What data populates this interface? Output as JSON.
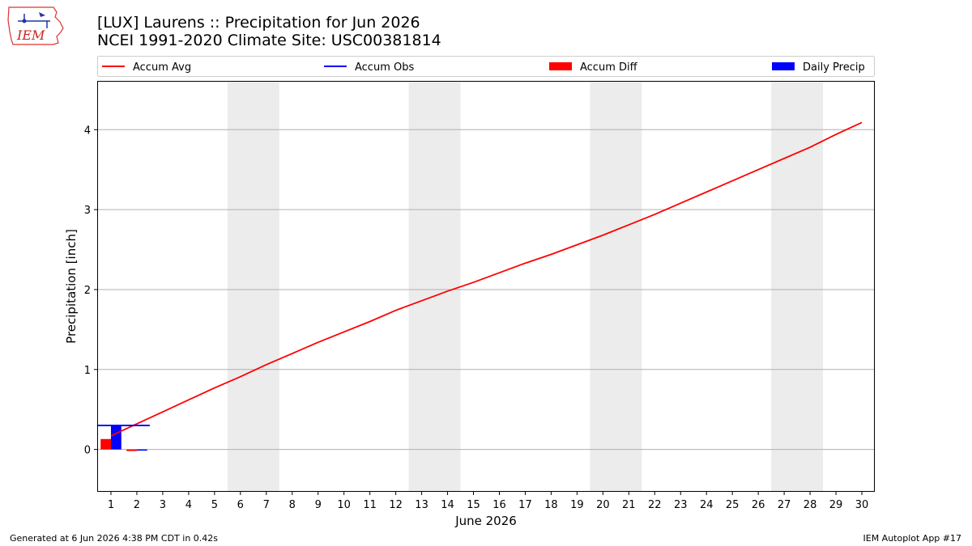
{
  "header": {
    "title_line1": "[LUX] Laurens :: Precipitation for Jun 2026",
    "title_line2": "NCEI 1991-2020 Climate Site: USC00381814"
  },
  "logo": {
    "text": "IEM",
    "icon": "iem-iowa-logo"
  },
  "footer": {
    "left": "Generated at 6 Jun 2026 4:38 PM CDT in 0.42s",
    "right": "IEM Autoplot App #17"
  },
  "colors": {
    "avg": "#ff0000",
    "obs": "#0000ff",
    "diff": "#ff0000",
    "precip": "#0000ff",
    "weekend": "#ececec",
    "grid": "#b0b0b0"
  },
  "chart_data": {
    "type": "line",
    "xlabel": "June 2026",
    "ylabel": "Precipitation [inch]",
    "xlim": [
      0.5,
      30.5
    ],
    "ylim": [
      -0.52,
      4.6
    ],
    "yticks": [
      0,
      1,
      2,
      3,
      4
    ],
    "x_ticks": [
      "1",
      "2",
      "3",
      "4",
      "5",
      "6",
      "7",
      "8",
      "9",
      "10",
      "11",
      "12",
      "13",
      "14",
      "15",
      "16",
      "17",
      "18",
      "19",
      "20",
      "21",
      "22",
      "23",
      "24",
      "25",
      "26",
      "27",
      "28",
      "29",
      "30"
    ],
    "grid": "horizontal",
    "legend_position": "top",
    "weekend_shading": [
      [
        6,
        7
      ],
      [
        13,
        14
      ],
      [
        20,
        21
      ],
      [
        27,
        28
      ]
    ],
    "legend": [
      "Accum Avg",
      "Accum Obs",
      "Accum Diff",
      "Daily Precip"
    ],
    "series": [
      {
        "name": "Accum Avg",
        "kind": "line",
        "x": [
          1,
          2,
          3,
          4,
          5,
          6,
          7,
          8,
          9,
          10,
          11,
          12,
          13,
          14,
          15,
          16,
          17,
          18,
          19,
          20,
          21,
          22,
          23,
          24,
          25,
          26,
          27,
          28,
          29,
          30
        ],
        "values": [
          0.17,
          0.32,
          0.47,
          0.62,
          0.77,
          0.91,
          1.06,
          1.2,
          1.34,
          1.47,
          1.6,
          1.74,
          1.86,
          1.98,
          2.09,
          2.21,
          2.33,
          2.44,
          2.56,
          2.68,
          2.81,
          2.94,
          3.08,
          3.22,
          3.36,
          3.5,
          3.64,
          3.78,
          3.94,
          4.09
        ]
      },
      {
        "name": "Accum Obs",
        "kind": "step",
        "x": [
          1,
          2
        ],
        "values": [
          0.3,
          0.3
        ]
      },
      {
        "name": "Accum Diff",
        "kind": "bar",
        "x": [
          1,
          2
        ],
        "values": [
          0.13,
          -0.02
        ]
      },
      {
        "name": "Daily Precip",
        "kind": "bar",
        "x": [
          1,
          2
        ],
        "values": [
          0.3,
          0.0
        ]
      }
    ]
  }
}
